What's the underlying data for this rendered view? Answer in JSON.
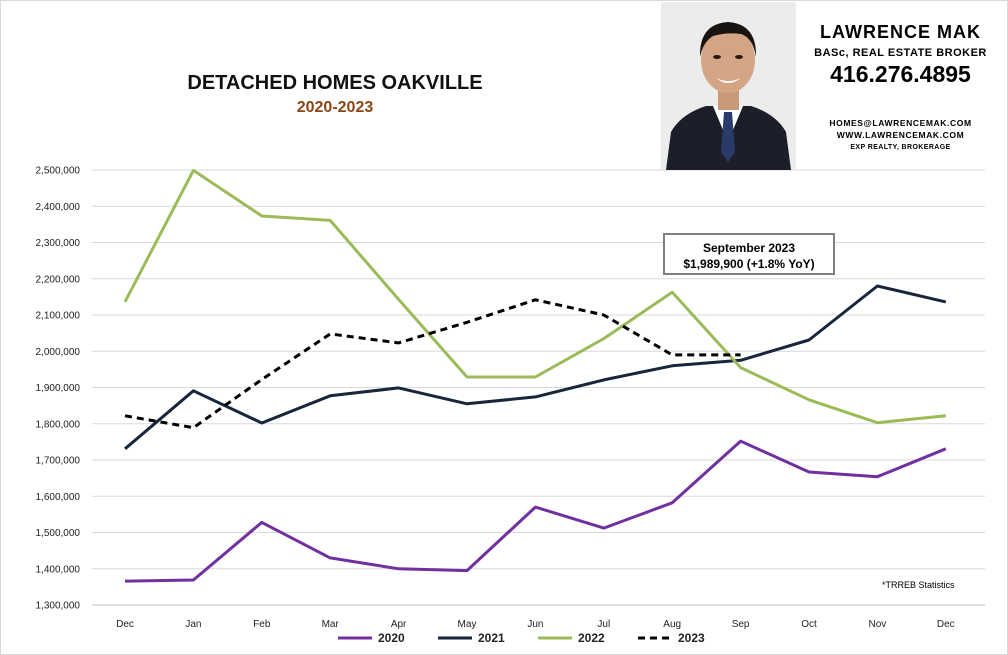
{
  "header": {
    "title": "DETACHED HOMES OAKVILLE",
    "subtitle": "2020-2023"
  },
  "agent": {
    "name": "LAWRENCE MAK",
    "title": "BASc, REAL ESTATE BROKER",
    "phone": "416.276.4895",
    "email": "HOMES@LAWRENCEMAK.COM",
    "website": "WWW.LAWRENCEMAK.COM",
    "brokerage": "EXP REALTY, BROKERAGE"
  },
  "callout": {
    "line1": "September 2023",
    "line2": "$1,989,900  (+1.8%  YoY)"
  },
  "footnote": "*TRREB Statistics",
  "chart_data": {
    "type": "line",
    "categories": [
      "Dec",
      "Jan",
      "Feb",
      "Mar",
      "Apr",
      "May",
      "Jun",
      "Jul",
      "Aug",
      "Sep",
      "Oct",
      "Nov",
      "Dec"
    ],
    "ylim": [
      1300000,
      2500000
    ],
    "yticks": [
      "1,300,000",
      "1,400,000",
      "1,500,000",
      "1,600,000",
      "1,700,000",
      "1,800,000",
      "1,900,000",
      "2,000,000",
      "2,100,000",
      "2,200,000",
      "2,300,000",
      "2,400,000",
      "2,500,000"
    ],
    "ytick_values": [
      1300000,
      1400000,
      1500000,
      1600000,
      1700000,
      1800000,
      1900000,
      2000000,
      2100000,
      2200000,
      2300000,
      2400000,
      2500000
    ],
    "grid": true,
    "legend_position": "bottom",
    "series": [
      {
        "name": "2020",
        "color": "#7030a0",
        "dashed": false,
        "values": [
          1366000,
          1369000,
          1528000,
          1430000,
          1400000,
          1395000,
          1570000,
          1512000,
          1582000,
          1752000,
          1667000,
          1654000,
          1731000
        ]
      },
      {
        "name": "2021",
        "color": "#17263c",
        "dashed": false,
        "values": [
          1731000,
          1891000,
          1802000,
          1877000,
          1899000,
          1855000,
          1874000,
          1921000,
          1960000,
          1975000,
          2031000,
          2180000,
          2136000
        ]
      },
      {
        "name": "2022",
        "color": "#9bbb59",
        "dashed": false,
        "values": [
          2136000,
          2499000,
          2373000,
          2361000,
          2143000,
          1929000,
          1929000,
          2035000,
          2163000,
          1955000,
          1866000,
          1803000,
          1822000
        ]
      },
      {
        "name": "2023",
        "color": "#000000",
        "dashed": true,
        "values": [
          1822000,
          1789000,
          1922000,
          2048000,
          2023000,
          2080000,
          2142000,
          2100000,
          1990000,
          1990000,
          null,
          null,
          null
        ]
      }
    ]
  }
}
